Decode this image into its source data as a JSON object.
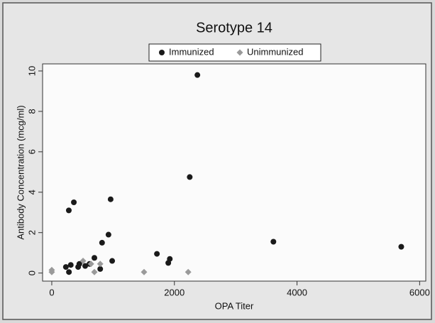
{
  "chart_data": {
    "type": "scatter",
    "title": "Serotype 14",
    "x_label": "OPA Titer",
    "y_label": "Antibody Concentration (mcg/ml)",
    "xlim": [
      -150,
      6100
    ],
    "ylim": [
      -0.4,
      10.35
    ],
    "xticks": [
      0,
      2000,
      4000,
      6000
    ],
    "yticks": [
      0,
      2,
      4,
      6,
      8,
      10
    ],
    "grid": false,
    "legend": "top",
    "series": [
      {
        "name": "Immunized",
        "color": "#1a1a1a",
        "marker": "circle",
        "x": [
          278,
          360,
          230,
          280,
          310,
          430,
          450,
          545,
          615,
          695,
          790,
          820,
          925,
          960,
          985,
          1715,
          1925,
          1900,
          2250,
          2375,
          3615,
          5700
        ],
        "values": [
          3.1,
          3.5,
          0.3,
          0.05,
          0.4,
          0.3,
          0.45,
          0.35,
          0.45,
          0.75,
          0.2,
          1.5,
          1.9,
          3.65,
          0.6,
          0.95,
          0.7,
          0.5,
          4.75,
          9.8,
          1.55,
          1.3
        ]
      },
      {
        "name": "Unimmunized",
        "color": "#9a9a9a",
        "marker": "diamond",
        "x": [
          0,
          0,
          510,
          640,
          695,
          790,
          1505,
          2225
        ],
        "values": [
          0.15,
          0.05,
          0.6,
          0.45,
          0.05,
          0.45,
          0.05,
          0.05
        ]
      }
    ]
  }
}
